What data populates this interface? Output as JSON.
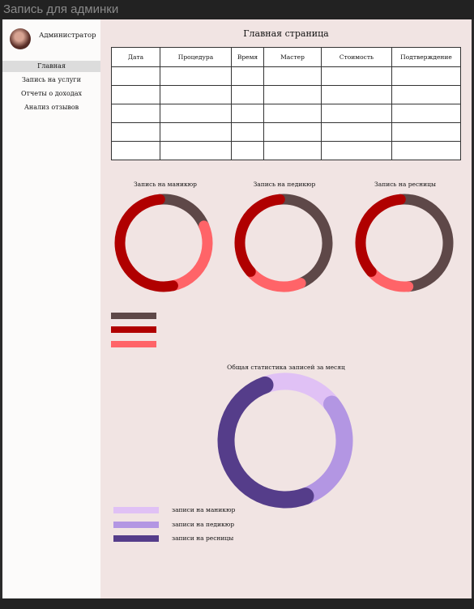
{
  "window": {
    "title": "Запись для админки"
  },
  "sidebar": {
    "user_name": "Администратор",
    "items": [
      {
        "label": "Главная",
        "active": true
      },
      {
        "label": "Запись на услуги",
        "active": false
      },
      {
        "label": "Отчеты о доходах",
        "active": false
      },
      {
        "label": "Анализ отзывов",
        "active": false
      }
    ]
  },
  "main": {
    "title": "Главная страница",
    "table": {
      "headers": [
        "Дата",
        "Процедура",
        "Время",
        "Мастер",
        "Стоимость",
        "Подтверждение"
      ],
      "rows": [
        [
          "",
          "",
          "",
          "",
          "",
          ""
        ],
        [
          "",
          "",
          "",
          "",
          "",
          ""
        ],
        [
          "",
          "",
          "",
          "",
          "",
          ""
        ],
        [
          "",
          "",
          "",
          "",
          "",
          ""
        ],
        [
          "",
          "",
          "",
          "",
          "",
          ""
        ]
      ]
    }
  },
  "colors": {
    "dark_brown": "#5e4848",
    "dark_red": "#b00000",
    "coral": "#ff6468",
    "light_lavender": "#e0c1f5",
    "lavender": "#b396e3",
    "purple": "#553d8a"
  },
  "chart_data": [
    {
      "type": "pie",
      "title": "Запись на маникюр",
      "donut": true,
      "slice_colors": [
        "#5e4848",
        "#ff6468",
        "#b00000"
      ],
      "values": [
        20,
        28,
        52
      ]
    },
    {
      "type": "pie",
      "title": "Запись на педикюр",
      "donut": true,
      "slice_colors": [
        "#5e4848",
        "#ff6468",
        "#b00000"
      ],
      "values": [
        45,
        20,
        35
      ]
    },
    {
      "type": "pie",
      "title": "Запись на ресницы",
      "donut": true,
      "slice_colors": [
        "#5e4848",
        "#ff6468",
        "#b00000"
      ],
      "values": [
        50,
        15,
        35
      ]
    },
    {
      "type": "pie",
      "title": "Общая статистика записей за месяц",
      "donut": true,
      "categories": [
        "записи на маникюр",
        "записи на педикюр",
        "записи на ресницы"
      ],
      "slice_colors": [
        "#e0c1f5",
        "#b396e3",
        "#553d8a"
      ],
      "values": [
        20,
        30,
        50
      ]
    }
  ]
}
